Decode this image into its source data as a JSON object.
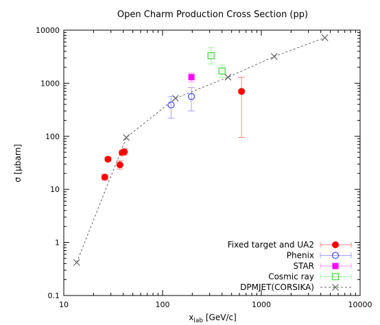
{
  "chart_data": {
    "type": "scatter",
    "title": "Open Charm Production Cross Section (pp)",
    "xlabel_main": "x",
    "xlabel_sub": "lab",
    "xlabel_rest": " [GeV/c]",
    "ylabel": "σ [μbarn]",
    "x_scale": "log",
    "y_scale": "log",
    "xlim": [
      10,
      10000
    ],
    "ylim": [
      0.1,
      10000
    ],
    "x_ticks": [
      10,
      100,
      1000,
      10000
    ],
    "x_tick_labels": [
      "10",
      "100",
      "1000",
      "10000"
    ],
    "y_ticks": [
      0.1,
      1,
      10,
      100,
      1000,
      10000
    ],
    "y_tick_labels": [
      "0.1",
      "1",
      "10",
      "100",
      "1000",
      "10000"
    ],
    "grid": false,
    "legend_position": "bottom-right",
    "series": [
      {
        "name": "Fixed target and UA2",
        "marker": "filled-circle",
        "color": "#ff0000",
        "errcolor": "#ff8080",
        "points": [
          {
            "x": 26,
            "y": 17,
            "ylo": 15,
            "yhi": 19
          },
          {
            "x": 28,
            "y": 37,
            "ylo": 34,
            "yhi": 40
          },
          {
            "x": 37,
            "y": 29,
            "ylo": 24,
            "yhi": 35
          },
          {
            "x": 39,
            "y": 49,
            "ylo": 44,
            "yhi": 54
          },
          {
            "x": 41,
            "y": 51,
            "ylo": 44,
            "yhi": 58
          },
          {
            "x": 630,
            "y": 700,
            "ylo": 95,
            "yhi": 1300
          }
        ]
      },
      {
        "name": "Phenix",
        "marker": "open-circle",
        "color": "#4040ff",
        "errcolor": "#a0a0ff",
        "points": [
          {
            "x": 122,
            "y": 390,
            "ylo": 220,
            "yhi": 560
          },
          {
            "x": 196,
            "y": 560,
            "ylo": 300,
            "yhi": 830
          }
        ]
      },
      {
        "name": "STAR",
        "marker": "filled-square",
        "color": "#ff00ff",
        "errcolor": "#ff90ff",
        "points": [
          {
            "x": 196,
            "y": 1300,
            "ylo": 1050,
            "yhi": 1550
          }
        ]
      },
      {
        "name": "Cosmic ray",
        "marker": "open-square",
        "color": "#40d040",
        "errcolor": "#a0f0a0",
        "points": [
          {
            "x": 310,
            "y": 3300,
            "ylo": 2300,
            "yhi": 4700
          },
          {
            "x": 400,
            "y": 1700,
            "ylo": 1300,
            "yhi": 2200
          }
        ]
      },
      {
        "name": "DPMJET(CORSIKA)",
        "marker": "cross",
        "color": "#606060",
        "line": "dashed",
        "points": [
          {
            "x": 13.5,
            "y": 0.42
          },
          {
            "x": 43,
            "y": 95
          },
          {
            "x": 135,
            "y": 520
          },
          {
            "x": 460,
            "y": 1300
          },
          {
            "x": 1350,
            "y": 3200
          },
          {
            "x": 4400,
            "y": 7200
          }
        ]
      }
    ]
  }
}
